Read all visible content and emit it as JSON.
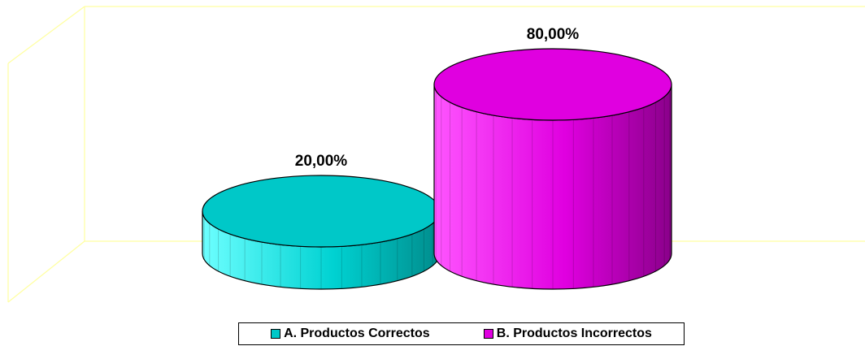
{
  "chart_data": {
    "type": "bar",
    "style": "3d-cylinder",
    "categories": [
      "A. Productos Correctos",
      "B. Productos Incorrectos"
    ],
    "values": [
      20.0,
      80.0
    ],
    "data_labels": [
      "20,00%",
      "80,00%"
    ],
    "colors": [
      "#00c8c8",
      "#e000e0"
    ],
    "ylim": [
      0,
      100
    ],
    "grid": false,
    "legend_position": "bottom",
    "wall_color": "#ffffa0"
  }
}
